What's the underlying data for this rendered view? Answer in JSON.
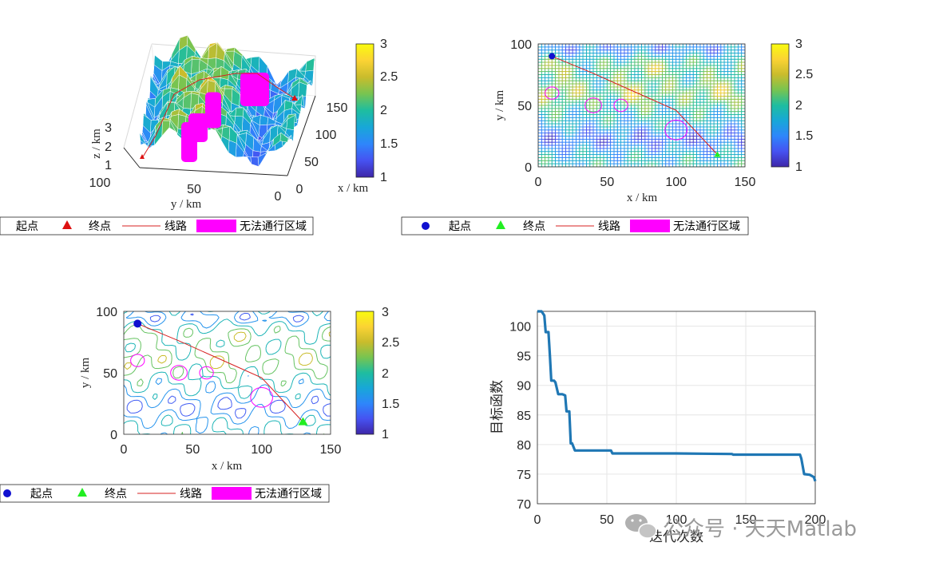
{
  "colors": {
    "parula": [
      "#3e26a8",
      "#4652f1",
      "#2e86fb",
      "#18a7d8",
      "#1ebda0",
      "#77c451",
      "#c9bc2c",
      "#fbd334",
      "#f9fb0e"
    ],
    "route": "#d72020",
    "start_blue": "#1010d0",
    "end_green": "#22ee22",
    "end_red": "#dd1010",
    "obstacle": "#ff00ff",
    "convergence": "#1f77b4"
  },
  "colorbar": {
    "ticks": [
      "1",
      "1.5",
      "2",
      "2.5",
      "3"
    ]
  },
  "chart_data": [
    {
      "type": "surface",
      "xlabel": "x / km",
      "ylabel": "y / km",
      "zlabel": "z / km",
      "x_ticks": [
        "0",
        "50",
        "100",
        "150"
      ],
      "y_ticks": [
        "100",
        "50",
        "0"
      ],
      "z_ticks": [
        "1",
        "2",
        "3"
      ],
      "legend": [
        "起点",
        "终点",
        "线路",
        "无法通行区域"
      ]
    },
    {
      "type": "heatmap",
      "xlabel": "x / km",
      "ylabel": "y / km",
      "xlim": [
        0,
        150
      ],
      "ylim": [
        0,
        100
      ],
      "x_ticks": [
        "0",
        "50",
        "100",
        "150"
      ],
      "y_ticks": [
        "0",
        "50",
        "100"
      ],
      "start": [
        10,
        90
      ],
      "end": [
        130,
        10
      ],
      "route": [
        [
          10,
          90
        ],
        [
          40,
          76
        ],
        [
          80,
          56
        ],
        [
          100,
          46
        ],
        [
          130,
          10
        ]
      ],
      "obstacles": [
        {
          "x": 10,
          "y": 60,
          "r": 5
        },
        {
          "x": 40,
          "y": 50,
          "r": 6
        },
        {
          "x": 60,
          "y": 50,
          "r": 5
        },
        {
          "x": 100,
          "y": 30,
          "r": 8
        }
      ],
      "legend": [
        "起点",
        "终点",
        "线路",
        "无法通行区域"
      ]
    },
    {
      "type": "contour",
      "xlabel": "x / km",
      "ylabel": "y / km",
      "xlim": [
        0,
        150
      ],
      "ylim": [
        0,
        100
      ],
      "x_ticks": [
        "0",
        "50",
        "100",
        "150"
      ],
      "y_ticks": [
        "0",
        "50",
        "100"
      ],
      "start": [
        10,
        90
      ],
      "end": [
        130,
        10
      ],
      "route": [
        [
          10,
          90
        ],
        [
          40,
          76
        ],
        [
          80,
          56
        ],
        [
          100,
          46
        ],
        [
          130,
          10
        ]
      ],
      "obstacles": [
        {
          "x": 10,
          "y": 60,
          "r": 5
        },
        {
          "x": 40,
          "y": 50,
          "r": 6
        },
        {
          "x": 60,
          "y": 50,
          "r": 5
        },
        {
          "x": 100,
          "y": 30,
          "r": 8
        }
      ],
      "legend": [
        "起点",
        "终点",
        "线路",
        "无法通行区域"
      ]
    },
    {
      "type": "line",
      "xlabel": "迭代次数",
      "ylabel": "目标函数",
      "xlim": [
        0,
        200
      ],
      "ylim": [
        70,
        102.5
      ],
      "x_ticks": [
        "0",
        "50",
        "100",
        "150",
        "200"
      ],
      "y_ticks": [
        "70",
        "75",
        "80",
        "85",
        "90",
        "95",
        "100"
      ],
      "grid": true,
      "x": [
        0,
        3,
        5,
        6,
        8,
        9,
        10,
        12,
        13,
        15,
        18,
        20,
        21,
        23,
        24,
        25,
        27,
        28,
        30,
        40,
        53,
        54,
        60,
        100,
        140,
        141,
        185,
        189,
        190,
        192,
        196,
        199,
        200
      ],
      "y": [
        102.5,
        102.5,
        101.8,
        99,
        99,
        95,
        90.8,
        90.8,
        90.5,
        88.5,
        88.5,
        88.3,
        85.6,
        85.6,
        80.2,
        80.2,
        79,
        79,
        79,
        79,
        79,
        78.5,
        78.5,
        78.5,
        78.4,
        78.3,
        78.3,
        78.3,
        77.6,
        75,
        74.9,
        74.5,
        73.8
      ]
    }
  ],
  "watermark": {
    "text": "公众号 · 天天Matlab"
  }
}
